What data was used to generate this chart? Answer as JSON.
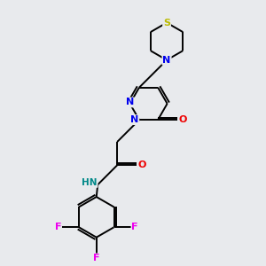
{
  "background_color": "#e8eaed",
  "atom_colors": {
    "C": "#000000",
    "N": "#0000ee",
    "O": "#ee0000",
    "S": "#bbbb00",
    "F": "#ee00ee",
    "H": "#008888"
  },
  "figsize": [
    3.0,
    3.0
  ],
  "dpi": 100,
  "lw": 1.4,
  "fontsize": 7.5
}
